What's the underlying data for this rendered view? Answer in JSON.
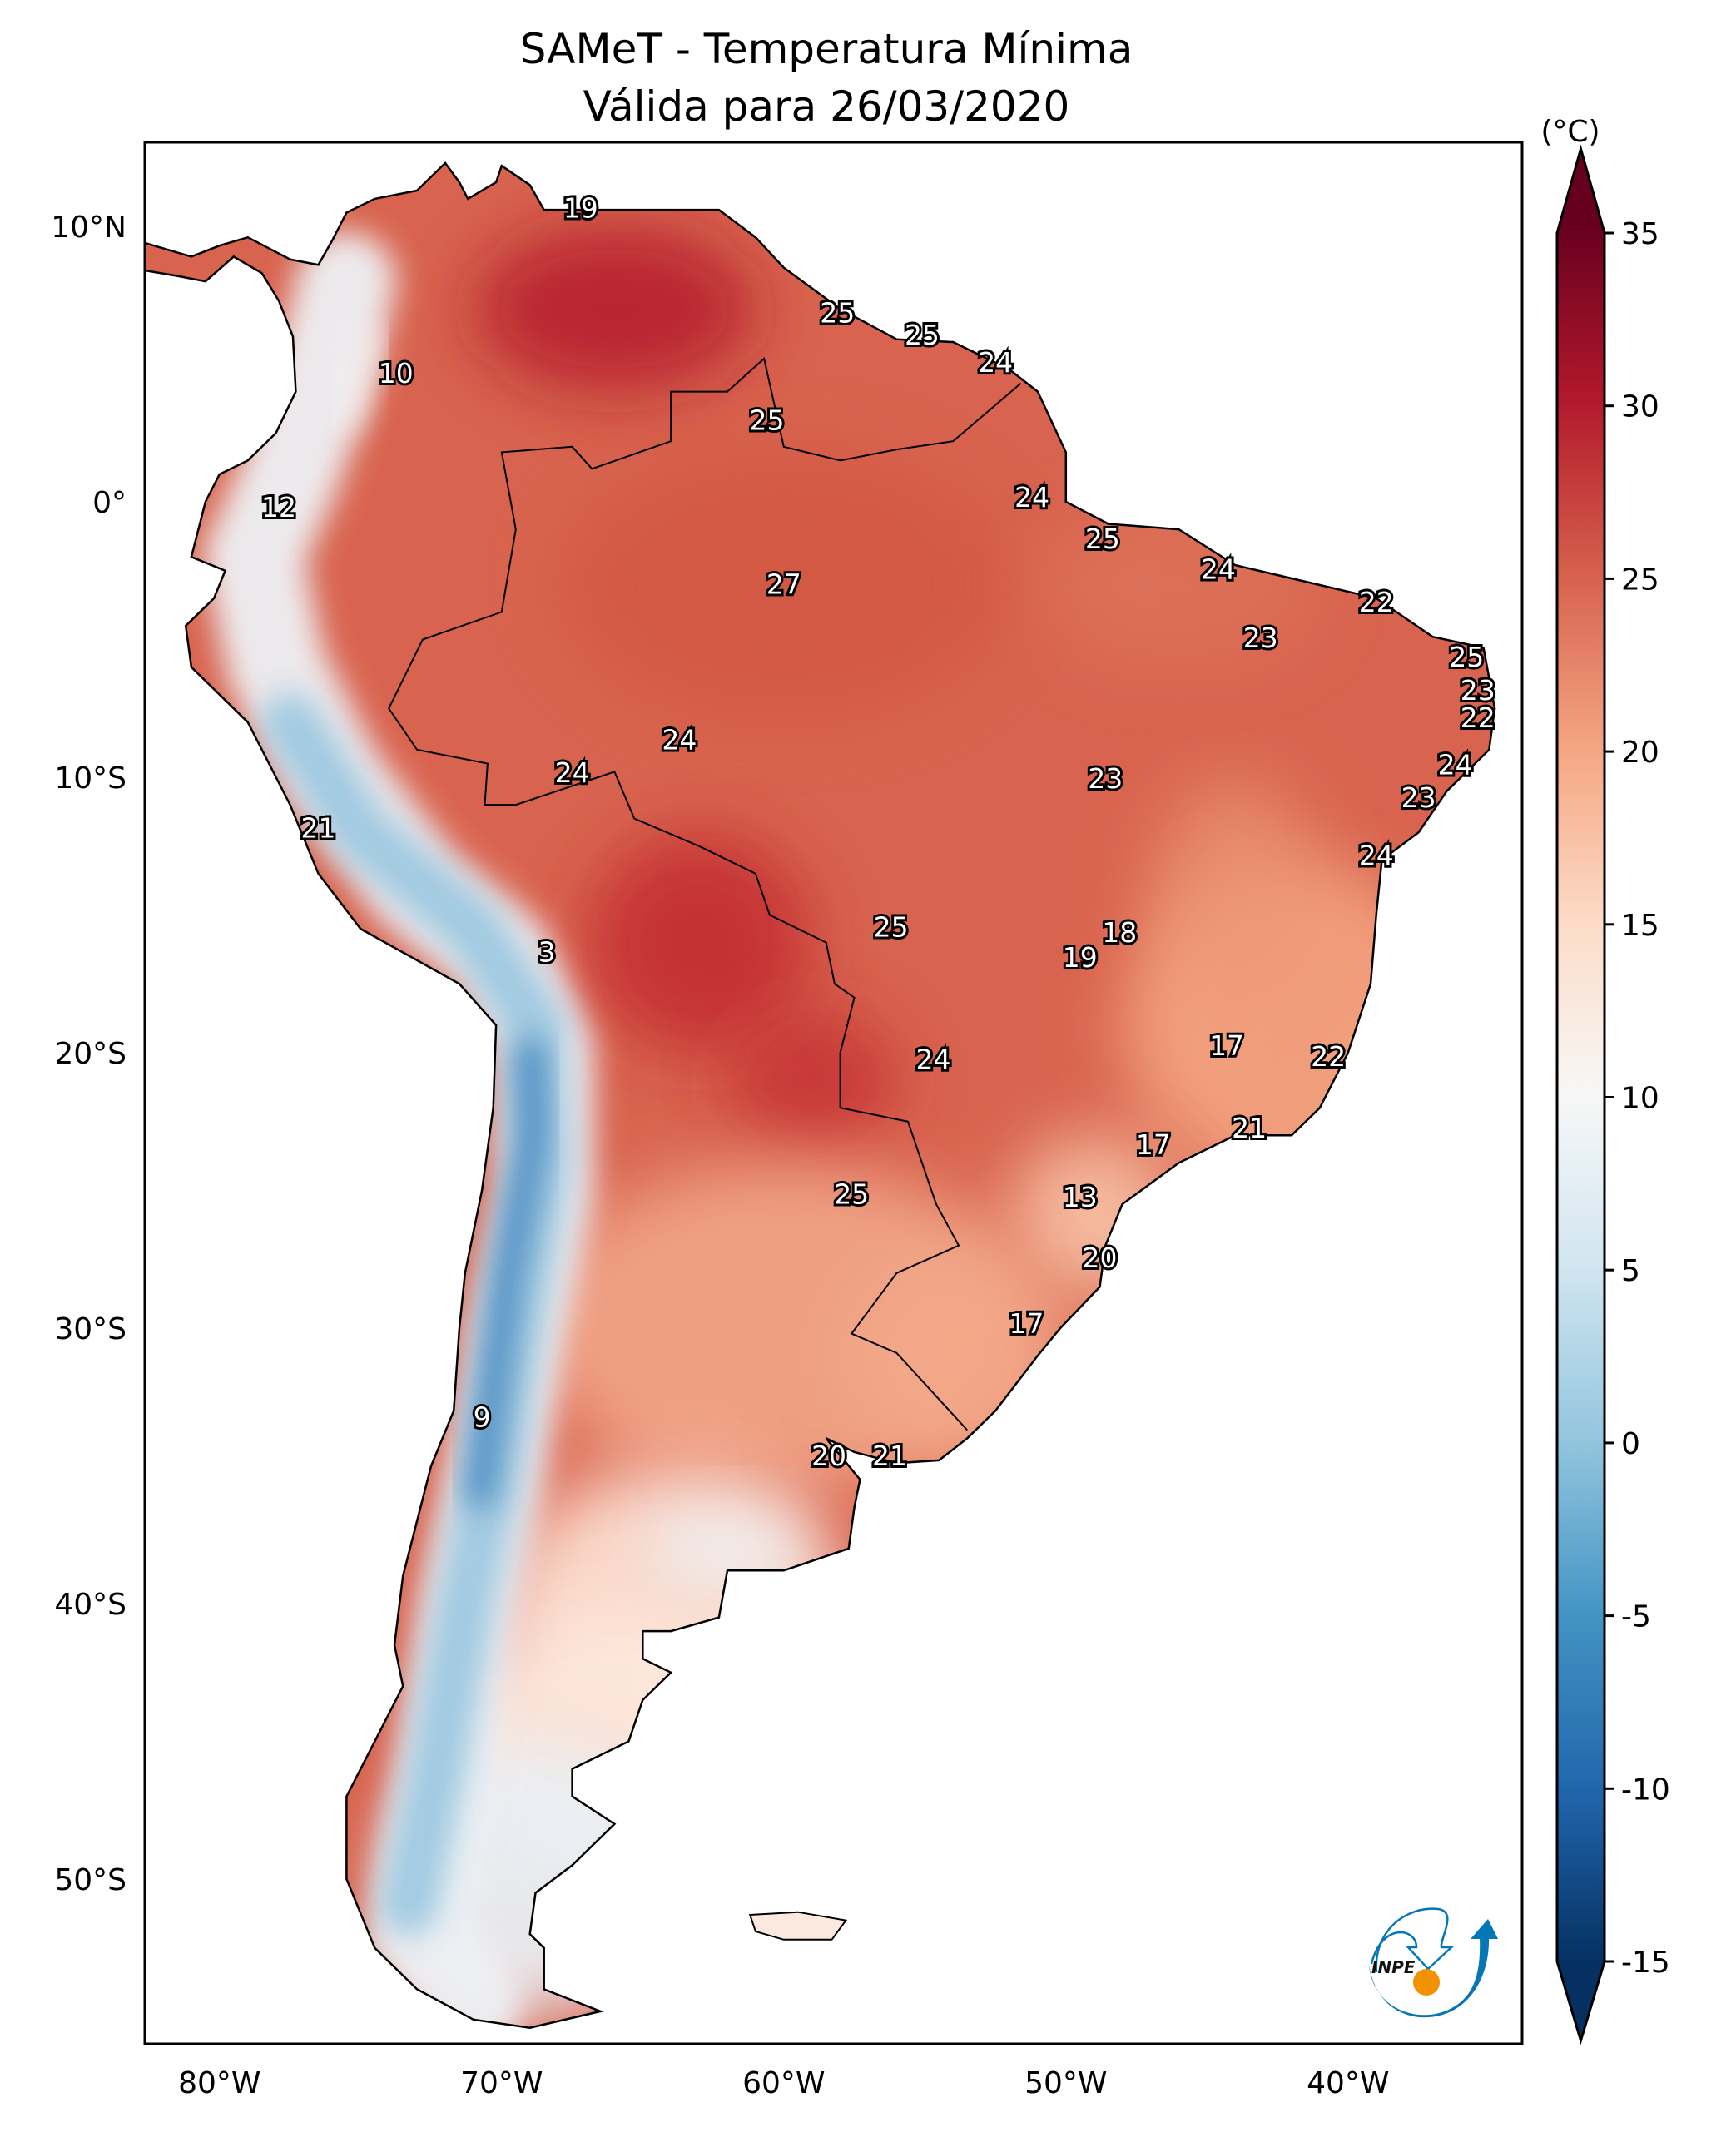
{
  "title": {
    "line1": "SAMeT - Temperatura Mínima",
    "line2": "Válida para 26/03/2020"
  },
  "colorbar": {
    "unit_label": "(°C)",
    "range": [
      -15,
      35
    ],
    "extend": "both",
    "colormap": "RdBu_r",
    "ticks": [
      "35",
      "30",
      "25",
      "20",
      "15",
      "10",
      "5",
      "0",
      "-5",
      "-10",
      "-15"
    ],
    "tick_values": [
      35,
      30,
      25,
      20,
      15,
      10,
      5,
      0,
      -5,
      -10,
      -15
    ],
    "colors": [
      "#053061",
      "#2166ac",
      "#4393c3",
      "#92c5de",
      "#d1e5f0",
      "#f7f7f7",
      "#fddbc7",
      "#f4a582",
      "#d6604d",
      "#b2182b",
      "#67001f"
    ]
  },
  "axes": {
    "lat_ticks": [
      {
        "value": 10,
        "label": "10°N"
      },
      {
        "value": 0,
        "label": "0°"
      },
      {
        "value": -10,
        "label": "10°S"
      },
      {
        "value": -20,
        "label": "20°S"
      },
      {
        "value": -30,
        "label": "30°S"
      },
      {
        "value": -40,
        "label": "40°S"
      },
      {
        "value": -50,
        "label": "50°S"
      }
    ],
    "lon_ticks": [
      {
        "value": -80,
        "label": "80°W"
      },
      {
        "value": -70,
        "label": "70°W"
      },
      {
        "value": -60,
        "label": "60°W"
      },
      {
        "value": -50,
        "label": "50°W"
      },
      {
        "value": -40,
        "label": "40°W"
      }
    ],
    "lon_range": [
      -82.65,
      -33.8
    ],
    "lat_range": [
      -55.95,
      13.05
    ]
  },
  "chart_data": {
    "type": "map",
    "title": "SAMeT - Temperatura Mínima — Válida para 26/03/2020",
    "variable": "Minimum temperature (°C)",
    "labels": [
      {
        "v": "19",
        "lon": -67.2,
        "lat": 10.6
      },
      {
        "v": "25",
        "lon": -58.1,
        "lat": 6.8
      },
      {
        "v": "25",
        "lon": -55.1,
        "lat": 6.0
      },
      {
        "v": "24",
        "lon": -52.5,
        "lat": 5.0
      },
      {
        "v": "10",
        "lon": -73.75,
        "lat": 4.6
      },
      {
        "v": "25",
        "lon": -60.6,
        "lat": 2.9
      },
      {
        "v": "24",
        "lon": -51.2,
        "lat": 0.1
      },
      {
        "v": "12",
        "lon": -77.9,
        "lat": -0.25
      },
      {
        "v": "25",
        "lon": -48.7,
        "lat": -1.4
      },
      {
        "v": "24",
        "lon": -44.6,
        "lat": -2.5
      },
      {
        "v": "27",
        "lon": -60.0,
        "lat": -3.05
      },
      {
        "v": "22",
        "lon": -39.0,
        "lat": -3.7
      },
      {
        "v": "23",
        "lon": -43.1,
        "lat": -5.0
      },
      {
        "v": "25",
        "lon": -35.8,
        "lat": -5.7
      },
      {
        "v": "23",
        "lon": -35.4,
        "lat": -6.9
      },
      {
        "v": "22",
        "lon": -35.4,
        "lat": -7.9
      },
      {
        "v": "24",
        "lon": -63.7,
        "lat": -8.7
      },
      {
        "v": "24",
        "lon": -36.2,
        "lat": -9.6
      },
      {
        "v": "24",
        "lon": -67.5,
        "lat": -9.9
      },
      {
        "v": "23",
        "lon": -48.6,
        "lat": -10.1
      },
      {
        "v": "23",
        "lon": -37.5,
        "lat": -10.8
      },
      {
        "v": "21",
        "lon": -76.5,
        "lat": -11.9
      },
      {
        "v": "24",
        "lon": -39.0,
        "lat": -12.9
      },
      {
        "v": "25",
        "lon": -56.2,
        "lat": -15.5
      },
      {
        "v": "18",
        "lon": -48.1,
        "lat": -15.7
      },
      {
        "v": "3",
        "lon": -68.4,
        "lat": -16.4
      },
      {
        "v": "19",
        "lon": -49.5,
        "lat": -16.6
      },
      {
        "v": "17",
        "lon": -44.3,
        "lat": -19.8
      },
      {
        "v": "22",
        "lon": -40.7,
        "lat": -20.2
      },
      {
        "v": "24",
        "lon": -54.7,
        "lat": -20.3
      },
      {
        "v": "21",
        "lon": -43.5,
        "lat": -22.8
      },
      {
        "v": "17",
        "lon": -46.9,
        "lat": -23.4
      },
      {
        "v": "25",
        "lon": -57.6,
        "lat": -25.2
      },
      {
        "v": "13",
        "lon": -49.5,
        "lat": -25.3
      },
      {
        "v": "20",
        "lon": -48.8,
        "lat": -27.5
      },
      {
        "v": "17",
        "lon": -51.4,
        "lat": -29.9
      },
      {
        "v": "9",
        "lon": -70.7,
        "lat": -33.3
      },
      {
        "v": "20",
        "lon": -58.4,
        "lat": -34.7
      },
      {
        "v": "21",
        "lon": -56.25,
        "lat": -34.7
      }
    ]
  },
  "logo": {
    "text": "INPE",
    "blue": "#0477b9",
    "orange": "#f39200"
  }
}
